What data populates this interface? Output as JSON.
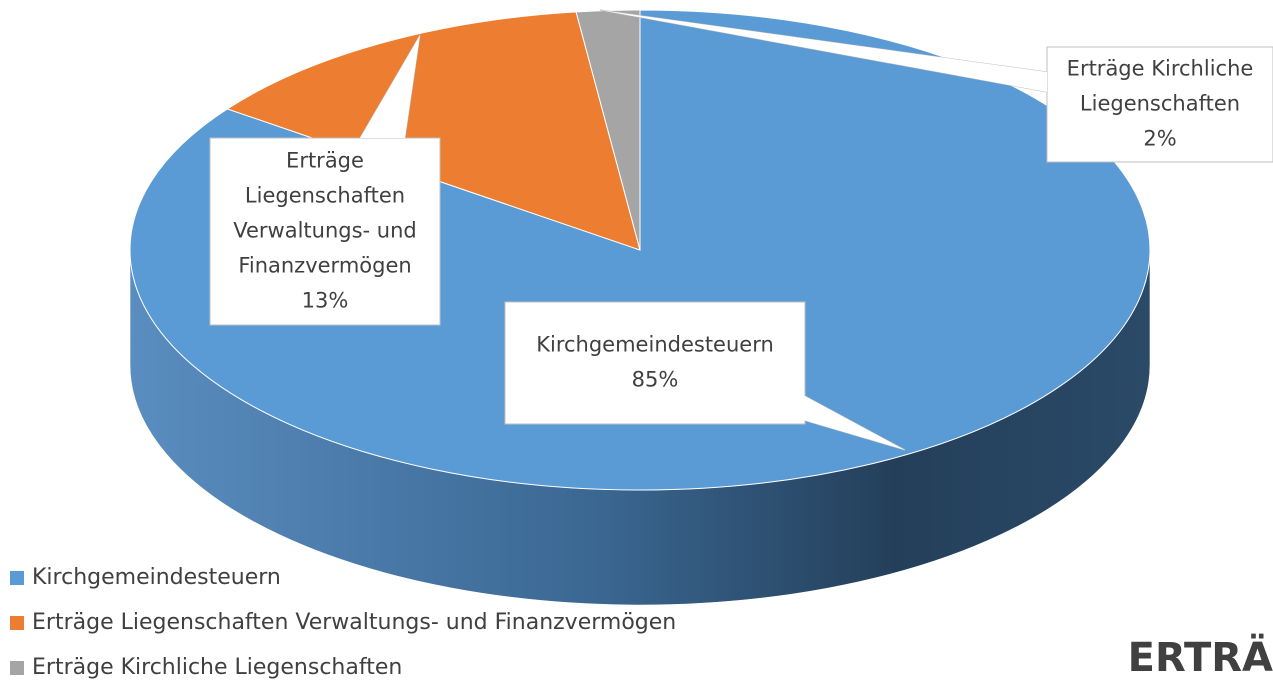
{
  "chart_data": {
    "type": "pie",
    "title": "ERTRÄ",
    "categories": [
      "Kirchgemeindesteuern",
      "Erträge Liegenschaften Verwaltungs- und Finanzvermögen",
      "Erträge Kirchliche Liegenschaften"
    ],
    "values": [
      85,
      13,
      2
    ],
    "value_labels": [
      "85%",
      "13%",
      "2%"
    ],
    "colors": [
      "#5b9bd5",
      "#ed7d31",
      "#a5a5a5"
    ],
    "legend": "bottom-left"
  }
}
